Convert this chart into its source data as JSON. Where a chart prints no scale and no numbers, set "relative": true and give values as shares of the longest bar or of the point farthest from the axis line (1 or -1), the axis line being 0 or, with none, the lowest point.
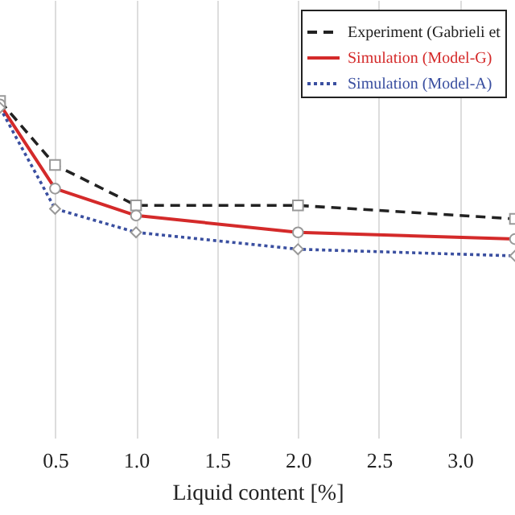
{
  "chart_data": {
    "type": "line",
    "xlabel": "Liquid content [%]",
    "relative": true,
    "x": [
      0.16,
      0.5,
      1.0,
      2.0,
      3.34
    ],
    "xlim": [
      0.16,
      3.34
    ],
    "xticks": [
      {
        "value": 0.5,
        "label": "0.5"
      },
      {
        "value": 1.0,
        "label": "1.0"
      },
      {
        "value": 1.5,
        "label": "1.5"
      },
      {
        "value": 2.0,
        "label": "2.0"
      },
      {
        "value": 2.5,
        "label": "2.5"
      },
      {
        "value": 3.0,
        "label": "3.0"
      }
    ],
    "grid": "x",
    "legend": "top right",
    "tick_labels": "x",
    "series": [
      {
        "name": "Experiment (Gabrieli et",
        "color": "#222222",
        "line_style": "dashed",
        "marker": "square",
        "values": [
          1,
          0.81,
          0.69,
          0.69,
          0.65
        ]
      },
      {
        "name": "Simulation (Model-G)",
        "color": "#d42a2a",
        "line_style": "solid",
        "marker": "circle",
        "values": [
          0.99,
          0.74,
          0.66,
          0.61,
          0.59
        ]
      },
      {
        "name": "Simulation (Model-A)",
        "color": "#3a4fa0",
        "line_style": "dotted",
        "marker": "diamond",
        "values": [
          0.98,
          0.68,
          0.61,
          0.56,
          0.54
        ]
      }
    ]
  }
}
